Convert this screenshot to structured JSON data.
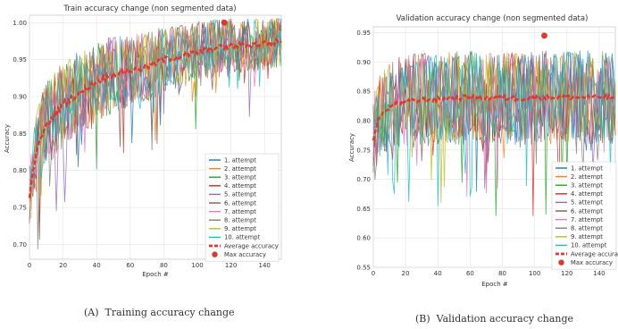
{
  "chart_data": [
    {
      "type": "line",
      "title": "Train accuracy change (non segmented data)",
      "xlabel": "Epoch #",
      "ylabel": "Accuracy",
      "xlim": [
        0,
        150
      ],
      "ylim": [
        0.68,
        1.01
      ],
      "xticks": [
        0,
        20,
        40,
        60,
        80,
        100,
        120,
        140
      ],
      "yticks": [
        0.7,
        0.75,
        0.8,
        0.85,
        0.9,
        0.95,
        1.0
      ],
      "xtick_labels": [
        "0",
        "20",
        "40",
        "60",
        "80",
        "100",
        "120",
        "140"
      ],
      "ytick_labels": [
        "0.70",
        "0.75",
        "0.80",
        "0.85",
        "0.90",
        "0.95",
        "1.00"
      ],
      "grid": true,
      "legend_position": "lower-right",
      "series_names": [
        "1. attempt",
        "2. attempt",
        "3. attempt",
        "4. attempt",
        "5. attempt",
        "6. attempt",
        "7. attempt",
        "8. attempt",
        "9. attempt",
        "10. attempt"
      ],
      "average_name": "Average accuracy",
      "max_name": "Max accuracy",
      "average_curve": [
        [
          0,
          0.76
        ],
        [
          2,
          0.8
        ],
        [
          4,
          0.82
        ],
        [
          6,
          0.84
        ],
        [
          10,
          0.86
        ],
        [
          15,
          0.875
        ],
        [
          20,
          0.89
        ],
        [
          30,
          0.905
        ],
        [
          40,
          0.92
        ],
        [
          50,
          0.93
        ],
        [
          60,
          0.935
        ],
        [
          70,
          0.94
        ],
        [
          80,
          0.95
        ],
        [
          90,
          0.955
        ],
        [
          100,
          0.96
        ],
        [
          110,
          0.965
        ],
        [
          120,
          0.968
        ],
        [
          130,
          0.97
        ],
        [
          140,
          0.972
        ],
        [
          150,
          0.974
        ]
      ],
      "noise_amplitude": [
        [
          0,
          0.05
        ],
        [
          10,
          0.06
        ],
        [
          40,
          0.055
        ],
        [
          80,
          0.045
        ],
        [
          150,
          0.035
        ]
      ],
      "max_point": {
        "x": 116,
        "y": 1.0
      },
      "caption_label": "(A)",
      "caption_text": "Training accuracy change"
    },
    {
      "type": "line",
      "title": "Validation accuracy change (non segmented data)",
      "xlabel": "Epoch #",
      "ylabel": "Accuracy",
      "xlim": [
        0,
        150
      ],
      "ylim": [
        0.55,
        0.96
      ],
      "xticks": [
        0,
        20,
        40,
        60,
        80,
        100,
        120,
        140
      ],
      "yticks": [
        0.55,
        0.6,
        0.65,
        0.7,
        0.75,
        0.8,
        0.85,
        0.9,
        0.95
      ],
      "xtick_labels": [
        "0",
        "20",
        "40",
        "60",
        "80",
        "100",
        "120",
        "140"
      ],
      "ytick_labels": [
        "0.55",
        "0.60",
        "0.65",
        "0.70",
        "0.75",
        "0.80",
        "0.85",
        "0.90",
        "0.95"
      ],
      "grid": true,
      "legend_position": "lower-right",
      "series_names": [
        "1. attempt",
        "2. attempt",
        "3. attempt",
        "4. attempt",
        "5. attempt",
        "6. attempt",
        "7. attempt",
        "8. attempt",
        "9. attempt",
        "10. attempt"
      ],
      "average_name": "Average accuracy",
      "max_name": "Max accuracy",
      "average_curve": [
        [
          0,
          0.77
        ],
        [
          3,
          0.8
        ],
        [
          8,
          0.82
        ],
        [
          15,
          0.83
        ],
        [
          30,
          0.835
        ],
        [
          60,
          0.84
        ],
        [
          90,
          0.838
        ],
        [
          120,
          0.84
        ],
        [
          150,
          0.84
        ]
      ],
      "noise_amplitude": [
        [
          0,
          0.07
        ],
        [
          20,
          0.08
        ],
        [
          150,
          0.08
        ]
      ],
      "max_point": {
        "x": 106,
        "y": 0.945
      },
      "caption_label": "(B)",
      "caption_text": "Validation accuracy change"
    }
  ],
  "colors": [
    "#1f77b4",
    "#ff7f0e",
    "#2ca02c",
    "#d62728",
    "#9467bd",
    "#8c564b",
    "#e377c2",
    "#7f7f7f",
    "#bcbd22",
    "#17becf"
  ],
  "average_color": "#e8332a"
}
